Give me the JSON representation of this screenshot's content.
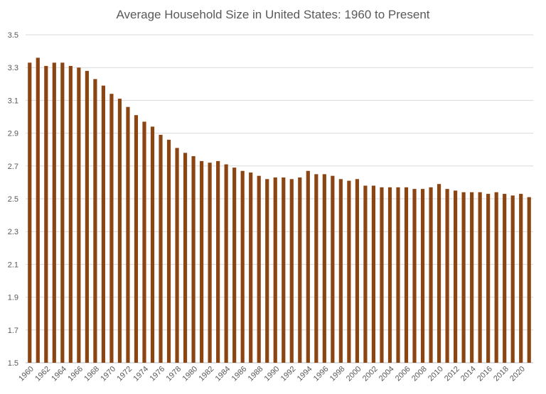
{
  "chart_data": {
    "type": "bar",
    "title": "Average Household Size in United States:  1960 to Present",
    "xlabel": "",
    "ylabel": "",
    "ylim": [
      1.5,
      3.5
    ],
    "yticks": [
      "1.5",
      "1.7",
      "1.9",
      "2.1",
      "2.3",
      "2.5",
      "2.7",
      "2.9",
      "3.1",
      "3.3",
      "3.5"
    ],
    "grid": true,
    "legend": "none",
    "bar_color": "#8B4513",
    "categories": [
      "1960",
      "1961",
      "1962",
      "1963",
      "1964",
      "1965",
      "1966",
      "1967",
      "1968",
      "1969",
      "1970",
      "1971",
      "1972",
      "1973",
      "1974",
      "1975",
      "1976",
      "1977",
      "1978",
      "1979",
      "1980",
      "1981",
      "1982",
      "1983",
      "1984",
      "1985",
      "1986",
      "1987",
      "1988",
      "1989",
      "1990",
      "1991",
      "1992",
      "1993",
      "1994",
      "1995",
      "1996",
      "1997",
      "1998",
      "1999",
      "2000",
      "2001",
      "2002",
      "2003",
      "2004",
      "2005",
      "2006",
      "2007",
      "2008",
      "2009",
      "2010",
      "2011",
      "2012",
      "2013",
      "2014",
      "2015",
      "2016",
      "2017",
      "2018",
      "2019",
      "2020",
      "2021"
    ],
    "tick_labels": [
      "1960",
      "1962",
      "1964",
      "1966",
      "1968",
      "1970",
      "1972",
      "1974",
      "1976",
      "1978",
      "1980",
      "1982",
      "1984",
      "1986",
      "1988",
      "1990",
      "1992",
      "1994",
      "1996",
      "1998",
      "2000",
      "2002",
      "2004",
      "2006",
      "2008",
      "2010",
      "2012",
      "2014",
      "2016",
      "2018",
      "2020"
    ],
    "values": [
      3.33,
      3.36,
      3.31,
      3.33,
      3.33,
      3.31,
      3.3,
      3.28,
      3.23,
      3.19,
      3.14,
      3.11,
      3.06,
      3.01,
      2.97,
      2.94,
      2.89,
      2.86,
      2.81,
      2.78,
      2.76,
      2.73,
      2.72,
      2.73,
      2.71,
      2.69,
      2.67,
      2.66,
      2.64,
      2.62,
      2.63,
      2.63,
      2.62,
      2.63,
      2.67,
      2.65,
      2.65,
      2.64,
      2.62,
      2.61,
      2.62,
      2.58,
      2.58,
      2.57,
      2.57,
      2.57,
      2.57,
      2.56,
      2.56,
      2.57,
      2.59,
      2.56,
      2.55,
      2.54,
      2.54,
      2.54,
      2.53,
      2.54,
      2.53,
      2.52,
      2.53,
      2.51
    ]
  }
}
